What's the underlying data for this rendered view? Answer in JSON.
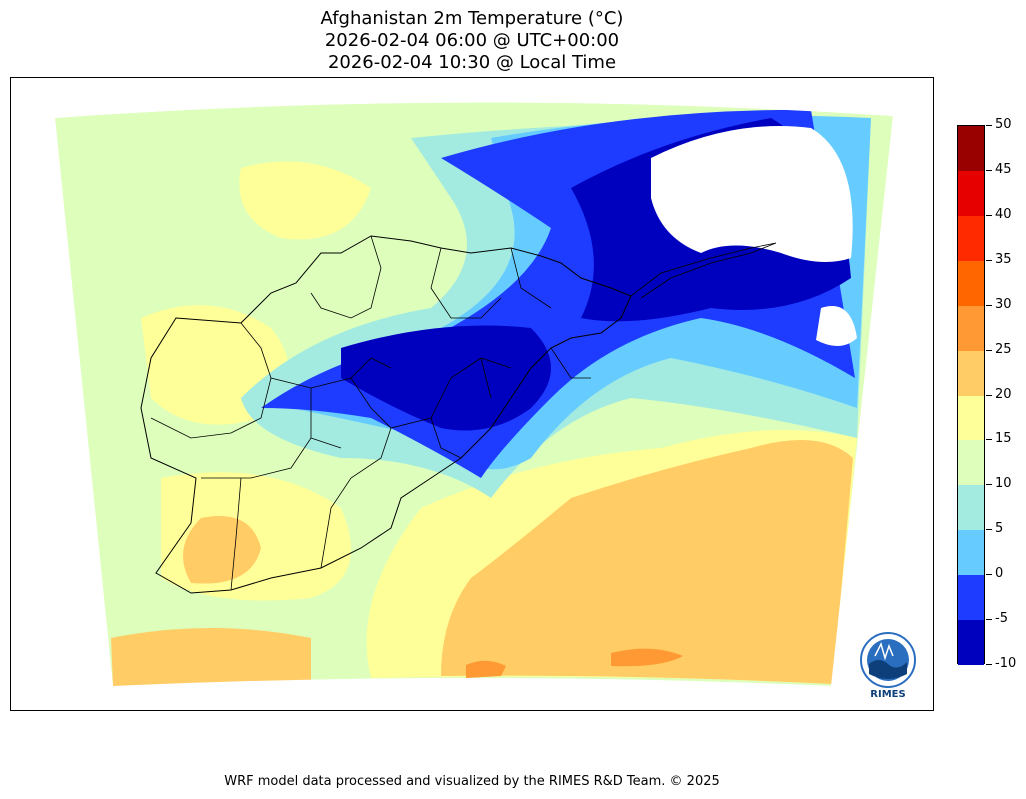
{
  "title_lines": [
    "Afghanistan 2m Temperature (°C)",
    "2026-02-04 06:00 @ UTC+00:00",
    "2026-02-04 10:30 @ Local Time"
  ],
  "colorbar": {
    "ticks": [
      "50",
      "45",
      "40",
      "35",
      "30",
      "25",
      "20",
      "15",
      "10",
      "5",
      "0",
      "-5",
      "-10"
    ],
    "levels": [
      {
        "range": "45-50",
        "color": "#990000"
      },
      {
        "range": "40-45",
        "color": "#e60000"
      },
      {
        "range": "35-40",
        "color": "#ff2a00"
      },
      {
        "range": "30-35",
        "color": "#ff6600"
      },
      {
        "range": "25-30",
        "color": "#ff9933"
      },
      {
        "range": "20-25",
        "color": "#ffcc66"
      },
      {
        "range": "15-20",
        "color": "#ffff99"
      },
      {
        "range": "10-15",
        "color": "#ddffbb"
      },
      {
        "range": "5-10",
        "color": "#a3ebe0"
      },
      {
        "range": "0-5",
        "color": "#66ccff"
      },
      {
        "range": "-5-0",
        "color": "#1e3cff"
      },
      {
        "range": "-10--5",
        "color": "#0000bf"
      }
    ]
  },
  "logo": {
    "text": "RIMES"
  },
  "footer": "WRF model data processed and visualized by the RIMES R&D Team. © 2025"
}
